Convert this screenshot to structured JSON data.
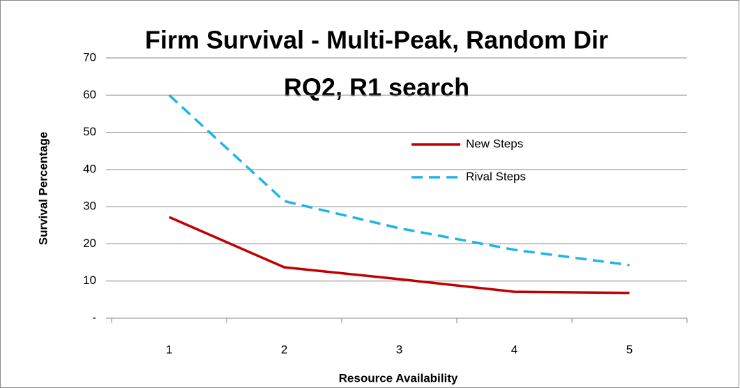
{
  "chart_data": {
    "type": "line",
    "title": [
      "Firm Survival - Multi-Peak, Random Dir",
      "RQ2, R1 search"
    ],
    "x_label": "Resource Availability",
    "y_label": "Survival Percentage",
    "categories": [
      "1",
      "2",
      "3",
      "4",
      "5"
    ],
    "series": [
      {
        "name": "New Steps",
        "color": "#c00000",
        "dash": false,
        "values": [
          27.2,
          13.7,
          10.5,
          7.1,
          6.8
        ]
      },
      {
        "name": "Rival Steps",
        "color": "#1fb4e8",
        "dash": true,
        "values": [
          60,
          31.5,
          24.2,
          18.4,
          14.3
        ]
      }
    ],
    "ylim": [
      0,
      70
    ],
    "yticks": [
      {
        "value": 0,
        "label": "-"
      },
      10,
      20,
      30,
      40,
      50,
      60,
      70
    ],
    "grid": true
  }
}
